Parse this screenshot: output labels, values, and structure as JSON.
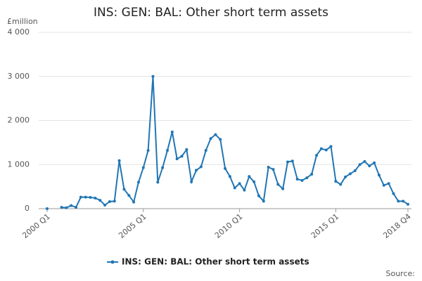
{
  "chart_data": {
    "type": "line",
    "title": "INS: GEN: BAL: Other short term assets",
    "y_label": "£million",
    "source": "Source:",
    "categories": [
      "2000 Q1",
      null,
      null,
      null,
      null,
      null,
      null,
      null,
      null,
      null,
      null,
      null,
      null,
      null,
      null,
      null,
      null,
      null,
      null,
      null,
      "2005 Q1",
      null,
      null,
      null,
      null,
      null,
      null,
      null,
      null,
      null,
      null,
      null,
      null,
      null,
      null,
      null,
      null,
      null,
      null,
      null,
      "2010 Q1",
      null,
      null,
      null,
      null,
      null,
      null,
      null,
      null,
      null,
      null,
      null,
      null,
      null,
      null,
      null,
      null,
      null,
      null,
      null,
      "2015 Q1",
      null,
      null,
      null,
      null,
      null,
      null,
      null,
      null,
      null,
      null,
      null,
      null,
      null,
      null,
      "2018 Q4"
    ],
    "series": [
      {
        "name": "INS: GEN: BAL: Other short term assets",
        "color": "#2176b4",
        "values": [
          0,
          null,
          null,
          30,
          20,
          70,
          30,
          260,
          260,
          255,
          240,
          190,
          80,
          160,
          170,
          1090,
          440,
          300,
          150,
          600,
          930,
          1320,
          3000,
          600,
          930,
          1320,
          1740,
          1130,
          1190,
          1340,
          610,
          870,
          950,
          1320,
          1590,
          1680,
          1570,
          910,
          730,
          470,
          570,
          420,
          730,
          610,
          290,
          170,
          940,
          890,
          550,
          450,
          1060,
          1080,
          670,
          640,
          700,
          780,
          1210,
          1360,
          1330,
          1410,
          620,
          550,
          720,
          790,
          860,
          1000,
          1070,
          970,
          1040,
          760,
          530,
          570,
          340,
          170,
          170,
          100
        ]
      }
    ],
    "ylim": [
      0,
      4000
    ],
    "yticks": [
      0,
      {
        "value": 1000,
        "label": "1 000"
      },
      {
        "value": 2000,
        "label": "2 000"
      },
      {
        "value": 3000,
        "label": "3 000"
      },
      {
        "value": 4000,
        "label": "4 000"
      }
    ],
    "grid": true,
    "legend": "bottom"
  }
}
